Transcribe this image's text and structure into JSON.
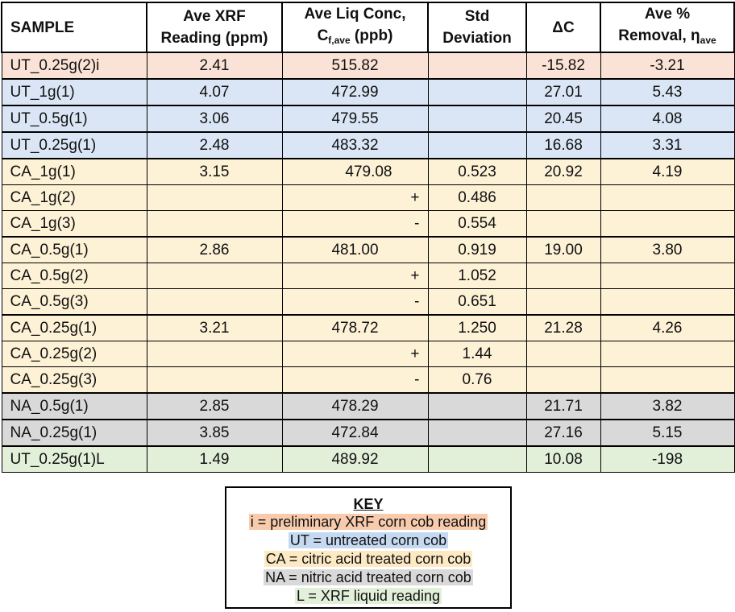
{
  "headers": {
    "sample": "SAMPLE",
    "xrf_1": "Ave XRF",
    "xrf_2": "Reading (ppm)",
    "liq_1": "Ave Liq Conc,",
    "liq_2a": "C",
    "liq_2sub": "f,ave",
    "liq_2b": " (ppb)",
    "std_1": "Std",
    "std_2": "Deviation",
    "dc": "ΔC",
    "rem_1": "Ave %",
    "rem_2a": "Removal, η",
    "rem_2sub": "ave"
  },
  "rows": [
    {
      "sample": "UT_0.25g(2)i",
      "xrf": "2.41",
      "liq": "515.82",
      "sign": "",
      "std": "",
      "dc": "-15.82",
      "removal": "-3.21"
    },
    {
      "sample": "UT_1g(1)",
      "xrf": "4.07",
      "liq": "472.99",
      "sign": "",
      "std": "",
      "dc": "27.01",
      "removal": "5.43"
    },
    {
      "sample": "UT_0.5g(1)",
      "xrf": "3.06",
      "liq": "479.55",
      "sign": "",
      "std": "",
      "dc": "20.45",
      "removal": "4.08"
    },
    {
      "sample": "UT_0.25g(1)",
      "xrf": "2.48",
      "liq": "483.32",
      "sign": "",
      "std": "",
      "dc": "16.68",
      "removal": "3.31"
    },
    {
      "sample": "CA_1g(1)",
      "xrf": "3.15",
      "liq": "479.08",
      "sign": "",
      "std": "0.523",
      "dc": "20.92",
      "removal": "4.19"
    },
    {
      "sample": "CA_1g(2)",
      "xrf": "",
      "liq": "",
      "sign": "+",
      "std": "0.486",
      "dc": "",
      "removal": ""
    },
    {
      "sample": "CA_1g(3)",
      "xrf": "",
      "liq": "",
      "sign": "-",
      "std": "0.554",
      "dc": "",
      "removal": ""
    },
    {
      "sample": "CA_0.5g(1)",
      "xrf": "2.86",
      "liq": "481.00",
      "sign": "",
      "std": "0.919",
      "dc": "19.00",
      "removal": "3.80"
    },
    {
      "sample": "CA_0.5g(2)",
      "xrf": "",
      "liq": "",
      "sign": "+",
      "std": "1.052",
      "dc": "",
      "removal": ""
    },
    {
      "sample": "CA_0.5g(3)",
      "xrf": "",
      "liq": "",
      "sign": "-",
      "std": "0.651",
      "dc": "",
      "removal": ""
    },
    {
      "sample": "CA_0.25g(1)",
      "xrf": "3.21",
      "liq": "478.72",
      "sign": "",
      "std": "1.250",
      "dc": "21.28",
      "removal": "4.26"
    },
    {
      "sample": "CA_0.25g(2)",
      "xrf": "",
      "liq": "",
      "sign": "+",
      "std": "1.44",
      "dc": "",
      "removal": ""
    },
    {
      "sample": "CA_0.25g(3)",
      "xrf": "",
      "liq": "",
      "sign": "-",
      "std": "0.76",
      "dc": "",
      "removal": ""
    },
    {
      "sample": "NA_0.5g(1)",
      "xrf": "2.85",
      "liq": "478.29",
      "sign": "",
      "std": "",
      "dc": "21.71",
      "removal": "3.82"
    },
    {
      "sample": "NA_0.25g(1)",
      "xrf": "3.85",
      "liq": "472.84",
      "sign": "",
      "std": "",
      "dc": "27.16",
      "removal": "5.15"
    },
    {
      "sample": "UT_0.25g(1)L",
      "xrf": "1.49",
      "liq": "489.92",
      "sign": "",
      "std": "",
      "dc": "10.08",
      "removal": "-198"
    }
  ],
  "key": {
    "title": "KEY",
    "lines": [
      "i = preliminary XRF corn cob reading",
      "UT = untreated corn cob",
      "CA = citric acid treated corn cob",
      "NA = nitric acid treated corn cob",
      "L = XRF liquid reading"
    ]
  },
  "colors": {
    "preliminary": "#fbe2d6",
    "untreated": "#dae6f5",
    "citric": "#fdf1d6",
    "nitric": "#d9d9d9",
    "liquid": "#e2efd9"
  }
}
